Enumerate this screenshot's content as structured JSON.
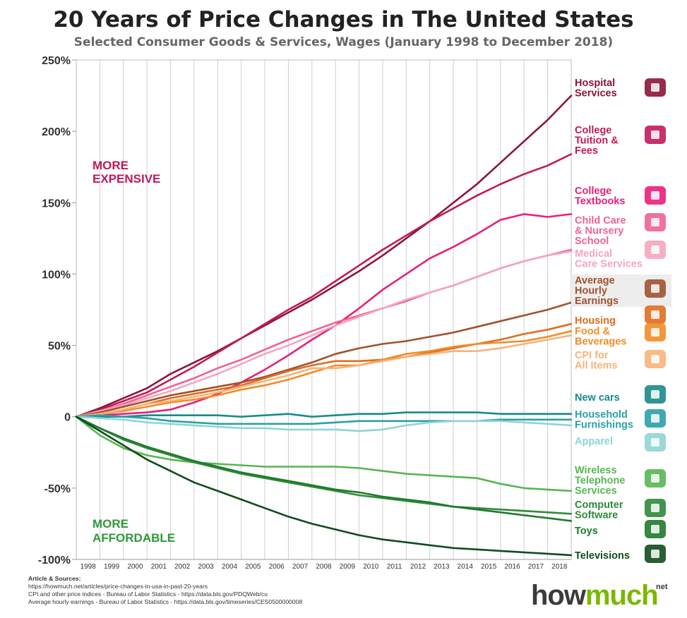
{
  "header": {
    "title": "20 Years of Price Changes in The United States",
    "subtitle": "Selected Consumer Goods & Services, Wages (January 1998 to December 2018)"
  },
  "zones": {
    "expensive": [
      "MORE",
      "EXPENSIVE"
    ],
    "affordable": [
      "MORE",
      "AFFORDABLE"
    ],
    "expensive_color": "#c2185b",
    "affordable_color": "#2e9a3a"
  },
  "sources": {
    "heading": "Article & Sources:",
    "lines": [
      "https://howmuch.net/articles/price-changes-in-usa-in-past-20-years",
      "CPI and other price indices - Bureau of Labor Statistics - https://data.bls.gov/PDQWeb/cu",
      "Average hourly earnings - Bureau of Labor Statistics - https://data.bls.gov/timeseries/CES0500000008"
    ]
  },
  "logo": {
    "how": "how",
    "much": "much",
    "net": "net"
  },
  "chart_data": {
    "type": "line",
    "x": [
      1998,
      1999,
      2000,
      2001,
      2002,
      2003,
      2004,
      2005,
      2006,
      2007,
      2008,
      2009,
      2010,
      2011,
      2012,
      2013,
      2014,
      2015,
      2016,
      2017,
      2018,
      2019
    ],
    "x_tick_labels": [
      "1998",
      "1999",
      "2000",
      "2001",
      "2002",
      "2003",
      "2004",
      "2005",
      "2006",
      "2007",
      "2008",
      "2009",
      "2010",
      "2011",
      "2012",
      "2013",
      "2014",
      "2015",
      "2016",
      "2017",
      "2018"
    ],
    "ylim": [
      -100,
      250
    ],
    "y_ticks": [
      -100,
      -50,
      0,
      50,
      100,
      150,
      200,
      250
    ],
    "y_tick_labels": [
      "-100%",
      "-50%",
      "0",
      "50%",
      "100%",
      "150%",
      "200%",
      "250%"
    ],
    "grid": true,
    "series": [
      {
        "name": "Hospital Services",
        "color": "#8b1538",
        "icon": "hospital-icon",
        "label_lines": [
          "Hospital",
          "Services"
        ],
        "values": [
          0,
          6,
          13,
          20,
          30,
          38,
          46,
          55,
          64,
          73,
          82,
          92,
          102,
          113,
          125,
          137,
          150,
          163,
          178,
          193,
          208,
          225
        ]
      },
      {
        "name": "College Tuition & Fees",
        "color": "#c2185b",
        "icon": "graduation-cap-icon",
        "label_lines": [
          "College",
          "Tuition &",
          "Fees"
        ],
        "values": [
          0,
          5,
          11,
          17,
          26,
          35,
          45,
          55,
          65,
          75,
          84,
          95,
          106,
          117,
          127,
          137,
          146,
          155,
          163,
          170,
          176,
          184
        ]
      },
      {
        "name": "College Textbooks",
        "color": "#e91e7a",
        "icon": "books-icon",
        "label_lines": [
          "College",
          "Textbooks"
        ],
        "values": [
          0,
          1,
          2,
          3,
          5,
          10,
          16,
          24,
          33,
          43,
          54,
          64,
          76,
          89,
          100,
          111,
          119,
          128,
          138,
          142,
          140,
          142
        ]
      },
      {
        "name": "Child Care & Nursery School",
        "color": "#f06292",
        "icon": "family-icon",
        "label_lines": [
          "Child Care",
          "& Nursery",
          "School"
        ],
        "values": [
          0,
          4,
          9,
          15,
          21,
          27,
          34,
          40,
          47,
          54,
          60,
          66,
          71,
          76,
          81,
          87,
          92,
          98,
          104,
          109,
          113,
          117
        ]
      },
      {
        "name": "Medical Care Services",
        "color": "#f4a6bd",
        "icon": "medical-hand-icon",
        "label_lines": [
          "Medical",
          "Care Services"
        ],
        "values": [
          0,
          4,
          8,
          13,
          18,
          24,
          30,
          37,
          44,
          50,
          57,
          64,
          70,
          76,
          82,
          87,
          92,
          98,
          104,
          109,
          113,
          116
        ]
      },
      {
        "name": "Average Hourly Earnings",
        "color": "#a0522d",
        "icon": "clock-money-icon",
        "label_lines": [
          "Average",
          "Hourly",
          "Earnings"
        ],
        "values": [
          0,
          3,
          7,
          11,
          15,
          18,
          21,
          24,
          28,
          33,
          38,
          44,
          48,
          51,
          53,
          56,
          59,
          63,
          67,
          71,
          75,
          80
        ]
      },
      {
        "name": "Housing",
        "color": "#e06c1f",
        "icon": "house-icon",
        "label_lines": [
          "Housing"
        ],
        "values": [
          0,
          2,
          5,
          9,
          13,
          16,
          19,
          22,
          27,
          32,
          36,
          39,
          39,
          40,
          42,
          45,
          48,
          51,
          54,
          58,
          61,
          65
        ]
      },
      {
        "name": "Food & Beverages",
        "color": "#f28c28",
        "icon": "food-icon",
        "label_lines": [
          "Food &",
          "Beverages"
        ],
        "values": [
          0,
          2,
          4,
          7,
          10,
          12,
          15,
          19,
          22,
          26,
          31,
          36,
          36,
          40,
          44,
          46,
          49,
          51,
          52,
          53,
          56,
          60
        ]
      },
      {
        "name": "CPI for All Items",
        "color": "#f7b27a",
        "icon": "price-tag-icon",
        "label_lines": [
          "CPI for",
          "All Items"
        ],
        "values": [
          0,
          2,
          5,
          9,
          11,
          14,
          17,
          21,
          25,
          29,
          34,
          34,
          36,
          39,
          42,
          44,
          46,
          46,
          48,
          51,
          54,
          57
        ]
      },
      {
        "name": "New cars",
        "color": "#1a8a8a",
        "icon": "car-icon",
        "label_lines": [
          "New cars"
        ],
        "values": [
          0,
          0,
          0,
          1,
          1,
          1,
          1,
          0,
          1,
          2,
          0,
          1,
          2,
          2,
          3,
          3,
          3,
          3,
          2,
          2,
          2,
          2
        ]
      },
      {
        "name": "Household Furnishings",
        "color": "#2aa0a8",
        "icon": "furniture-icon",
        "label_lines": [
          "Household",
          "Furnishings"
        ],
        "values": [
          0,
          1,
          0,
          -1,
          -3,
          -4,
          -5,
          -5,
          -5,
          -5,
          -5,
          -4,
          -3,
          -3,
          -3,
          -3,
          -3,
          -3,
          -2,
          -2,
          -2,
          -2
        ]
      },
      {
        "name": "Apparel",
        "color": "#8fd4d6",
        "icon": "shirt-icon",
        "label_lines": [
          "Apparel"
        ],
        "values": [
          0,
          -1,
          -2,
          -4,
          -5,
          -6,
          -7,
          -8,
          -8,
          -9,
          -9,
          -9,
          -10,
          -9,
          -6,
          -4,
          -3,
          -3,
          -3,
          -4,
          -5,
          -6
        ]
      },
      {
        "name": "Wireless Telephone Services",
        "color": "#56b652",
        "icon": "phone-icon",
        "label_lines": [
          "Wireless",
          "Telephone",
          "Services"
        ],
        "values": [
          0,
          -13,
          -22,
          -27,
          -30,
          -32,
          -33,
          -34,
          -35,
          -35,
          -35,
          -35,
          -36,
          -38,
          -40,
          -41,
          -42,
          -43,
          -47,
          -50,
          -51,
          -52
        ]
      },
      {
        "name": "Computer Software",
        "color": "#2f8a3a",
        "icon": "computer-icon",
        "label_lines": [
          "Computer",
          "Software"
        ],
        "values": [
          0,
          -8,
          -16,
          -22,
          -27,
          -32,
          -36,
          -40,
          -43,
          -46,
          -49,
          -52,
          -55,
          -57,
          -59,
          -61,
          -63,
          -64,
          -65,
          -66,
          -67,
          -68
        ]
      },
      {
        "name": "Toys",
        "color": "#207a2e",
        "icon": "toys-icon",
        "label_lines": [
          "Toys"
        ],
        "values": [
          0,
          -8,
          -15,
          -21,
          -26,
          -31,
          -35,
          -39,
          -42,
          -45,
          -48,
          -51,
          -53,
          -56,
          -58,
          -60,
          -63,
          -65,
          -67,
          -69,
          -71,
          -73
        ]
      },
      {
        "name": "Televisions",
        "color": "#0f4d1c",
        "icon": "tv-icon",
        "label_lines": [
          "Televisions"
        ],
        "values": [
          0,
          -10,
          -20,
          -30,
          -38,
          -46,
          -52,
          -58,
          -64,
          -70,
          -75,
          -79,
          -83,
          -86,
          -88,
          -90,
          -92,
          -93,
          -94,
          -95,
          -96,
          -97
        ]
      }
    ]
  }
}
